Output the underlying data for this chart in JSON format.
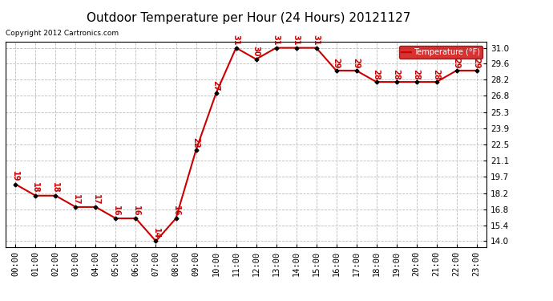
{
  "title": "Outdoor Temperature per Hour (24 Hours) 20121127",
  "copyright": "Copyright 2012 Cartronics.com",
  "legend_label": "Temperature (°F)",
  "hours": [
    0,
    1,
    2,
    3,
    4,
    5,
    6,
    7,
    8,
    9,
    10,
    11,
    12,
    13,
    14,
    15,
    16,
    17,
    18,
    19,
    20,
    21,
    22,
    23
  ],
  "temperatures": [
    19,
    18,
    18,
    17,
    17,
    16,
    16,
    14,
    16,
    22,
    27,
    31,
    30,
    31,
    31,
    31,
    29,
    29,
    28,
    28,
    28,
    28,
    29,
    29
  ],
  "x_labels": [
    "00:00",
    "01:00",
    "02:00",
    "03:00",
    "04:00",
    "05:00",
    "06:00",
    "07:00",
    "08:00",
    "09:00",
    "10:00",
    "11:00",
    "12:00",
    "13:00",
    "14:00",
    "15:00",
    "16:00",
    "17:00",
    "18:00",
    "19:00",
    "20:00",
    "21:00",
    "22:00",
    "23:00"
  ],
  "y_ticks": [
    14.0,
    15.4,
    16.8,
    18.2,
    19.7,
    21.1,
    22.5,
    23.9,
    25.3,
    26.8,
    28.2,
    29.6,
    31.0
  ],
  "ylim": [
    13.5,
    31.5
  ],
  "line_color": "#cc0000",
  "marker_color": "#000000",
  "label_color": "#cc0000",
  "grid_color": "#bbbbbb",
  "background_color": "#ffffff",
  "legend_bg": "#cc0000",
  "legend_text_color": "#ffffff",
  "title_fontsize": 11,
  "label_fontsize": 7,
  "tick_fontsize": 7.5,
  "copyright_fontsize": 6.5
}
